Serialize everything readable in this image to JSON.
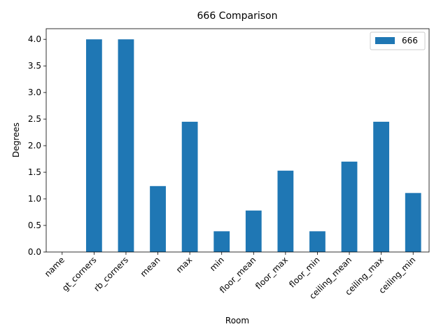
{
  "chart_data": {
    "type": "bar",
    "title": "666 Comparison",
    "xlabel": "Room",
    "ylabel": "Degrees",
    "categories": [
      "name",
      "gt_corners",
      "rb_corners",
      "mean",
      "max",
      "min",
      "floor_mean",
      "floor_max",
      "floor_min",
      "ceiling_mean",
      "ceiling_max",
      "ceiling_min"
    ],
    "series": [
      {
        "name": "666",
        "color": "#1f77b4",
        "values": [
          0,
          4.0,
          4.0,
          1.24,
          2.45,
          0.39,
          0.78,
          1.53,
          0.39,
          1.7,
          2.45,
          1.11
        ]
      }
    ],
    "ylim": [
      0,
      4.2
    ],
    "yticks": [
      "0.0",
      "0.5",
      "1.0",
      "1.5",
      "2.0",
      "2.5",
      "3.0",
      "3.5",
      "4.0"
    ],
    "grid": false,
    "legend_position": "top-right"
  }
}
